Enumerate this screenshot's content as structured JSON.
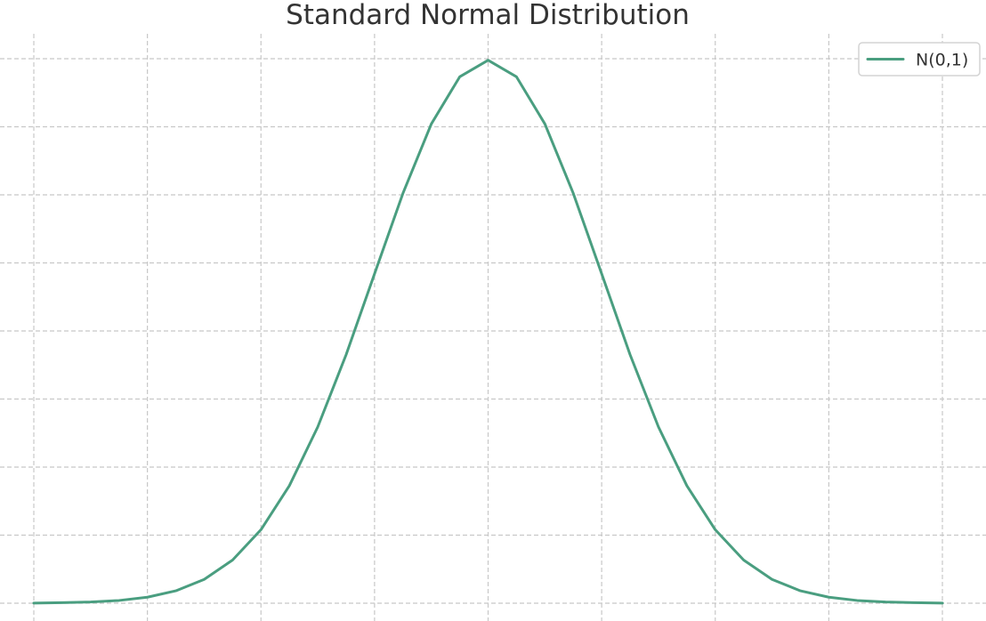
{
  "chart_data": {
    "type": "line",
    "title": "Standard Normal Distribution",
    "xlabel": "",
    "ylabel": "",
    "xlim": [
      -4,
      4
    ],
    "ylim": [
      0,
      0.4
    ],
    "x_grid": [
      -4,
      -3,
      -2,
      -1,
      0,
      1,
      2,
      3,
      4
    ],
    "y_grid": [
      0,
      0.05,
      0.1,
      0.15,
      0.2,
      0.25,
      0.3,
      0.35,
      0.4
    ],
    "grid": true,
    "legend_position": "top-right",
    "series": [
      {
        "name": "N(0,1)",
        "color": "#4a9e80",
        "x": [
          -4,
          -3.75,
          -3.5,
          -3.25,
          -3,
          -2.75,
          -2.5,
          -2.25,
          -2,
          -1.75,
          -1.5,
          -1.25,
          -1,
          -0.75,
          -0.5,
          -0.25,
          0,
          0.25,
          0.5,
          0.75,
          1,
          1.25,
          1.5,
          1.75,
          2,
          2.25,
          2.5,
          2.75,
          3,
          3.25,
          3.5,
          3.75,
          4
        ],
        "y": [
          0.0001,
          0.0004,
          0.0009,
          0.002,
          0.0044,
          0.0091,
          0.0175,
          0.0317,
          0.054,
          0.0863,
          0.1295,
          0.1826,
          0.242,
          0.3011,
          0.3521,
          0.3867,
          0.3989,
          0.3867,
          0.3521,
          0.3011,
          0.242,
          0.1826,
          0.1295,
          0.0863,
          0.054,
          0.0317,
          0.0175,
          0.0091,
          0.0044,
          0.002,
          0.0009,
          0.0004,
          0.0001
        ]
      }
    ]
  }
}
